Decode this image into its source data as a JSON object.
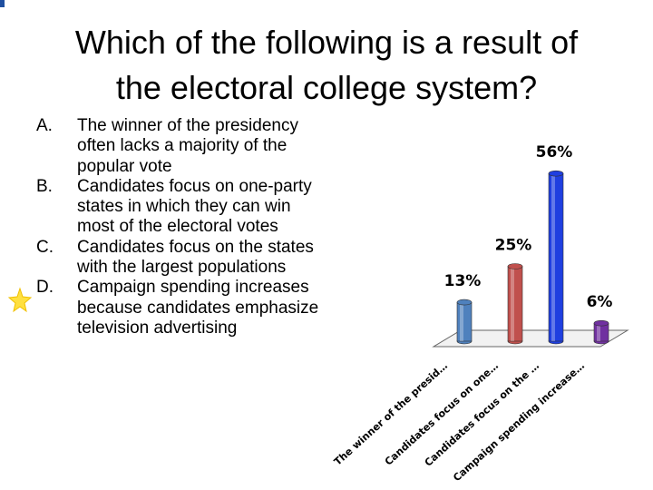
{
  "title_lines": [
    "Which of the following is a result of",
    "the electoral college system?"
  ],
  "options": [
    {
      "letter": "A.",
      "text": "The winner of the presidency often lacks a majority of the popular vote"
    },
    {
      "letter": "B.",
      "text": "Candidates focus on one-party states in which they can win most of the electoral votes"
    },
    {
      "letter": "C.",
      "text": "Candidates focus on the states with the largest populations"
    },
    {
      "letter": "D.",
      "text": "Campaign spending increases because candidates emphasize television advertising"
    }
  ],
  "chart_data": {
    "type": "bar",
    "categories": [
      "The winner of the presid…",
      "Candidates focus on one…",
      "Candidates focus on the …",
      "Campaign spending increase…"
    ],
    "values": [
      13,
      25,
      56,
      6
    ],
    "value_labels": [
      "13%",
      "25%",
      "56%",
      "6%"
    ],
    "colors": [
      "#4f81bd",
      "#c0504d",
      "#1f3fe0",
      "#7030a0"
    ]
  }
}
